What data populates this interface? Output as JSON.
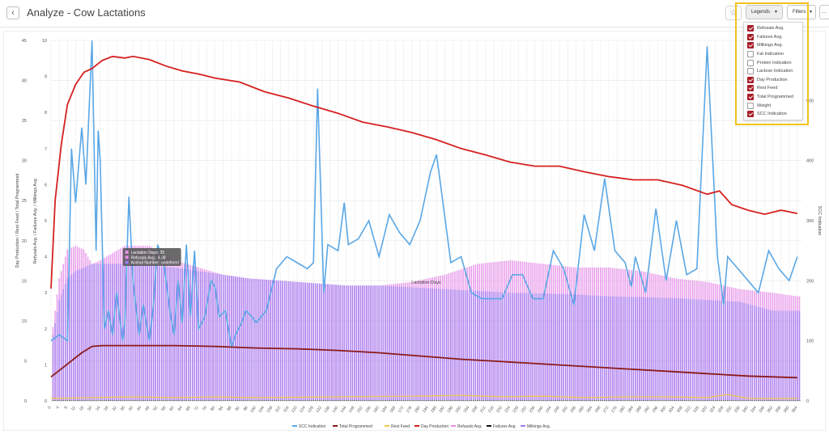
{
  "header": {
    "back_icon": "chevron-left-icon",
    "title": "Analyze - Cow Lactations",
    "star_icon": "star-icon",
    "legends_label": "Legends",
    "filters_label": "Filters",
    "more_label": "..."
  },
  "legend_dropdown": [
    {
      "label": "Refusals Avg.",
      "checked": true
    },
    {
      "label": "Failures Avg.",
      "checked": true
    },
    {
      "label": "Milkings Avg.",
      "checked": true
    },
    {
      "label": "Fat Indication",
      "checked": false
    },
    {
      "label": "Protein Indication",
      "checked": false
    },
    {
      "label": "Lactose Indication",
      "checked": false
    },
    {
      "label": "Day Production",
      "checked": true
    },
    {
      "label": "Rest Feed",
      "checked": true
    },
    {
      "label": "Total Programmed",
      "checked": true
    },
    {
      "label": "Weight",
      "checked": false
    },
    {
      "label": "SCC Indication",
      "checked": true
    }
  ],
  "colors": {
    "scc": "#5aa7e6",
    "total_programmed": "#8b1a1a",
    "rest_feed": "#f0c94c",
    "day_production": "#d62020",
    "refusals": "#e58ee8",
    "failures": "#111111",
    "milkings": "#9b7cf0",
    "highlight": "#f2c21a"
  },
  "tooltip": {
    "lines": [
      "Lactation Days: 35",
      "Refusals Avg.: 4.38",
      "Animal Number: undefined"
    ]
  },
  "chart_data": {
    "type": "bar",
    "xlabel": "Lactation Days",
    "ylabel_outer": "Day Production / Rest Feed / Total Programmed",
    "ylabel_inner": "Refusals Avg. / Failures Avg. / Milkings Avg.",
    "ylabel_right": "SCC Indication",
    "x_ticks": [
      0,
      4,
      8,
      12,
      16,
      20,
      24,
      28,
      32,
      36,
      40,
      44,
      48,
      52,
      56,
      60,
      64,
      68,
      72,
      76,
      80,
      84,
      88,
      92,
      96,
      100,
      104,
      108,
      112,
      116,
      120,
      124,
      128,
      132,
      136,
      140,
      144,
      148,
      152,
      156,
      160,
      164,
      168,
      172,
      176,
      180,
      184,
      188,
      192,
      196,
      200,
      204,
      208,
      212,
      216,
      220,
      224,
      228,
      232,
      236,
      240,
      244,
      248,
      252,
      256,
      260,
      264,
      268,
      272,
      276,
      280,
      284,
      288,
      292,
      296,
      300,
      304,
      308,
      312,
      316,
      320,
      324,
      328,
      332,
      336,
      340,
      344,
      348,
      352,
      356,
      360,
      364
    ],
    "y_outer_ticks": [
      0,
      5,
      10,
      15,
      20,
      25,
      30,
      35,
      40,
      45
    ],
    "y_inner_ticks": [
      0,
      1,
      2,
      3,
      4,
      5,
      6,
      7,
      8,
      9,
      10
    ],
    "y_right_ticks": [
      0,
      100,
      200,
      300,
      400,
      500
    ],
    "x_range": [
      0,
      366
    ],
    "y_outer_range": [
      0,
      45
    ],
    "y_inner_range": [
      0,
      10
    ],
    "y_right_range": [
      0,
      600
    ],
    "legend_position": "bottom",
    "legend": [
      "SCC Indication",
      "Total Programmed",
      "Rest Feed",
      "Day Production",
      "Refusals Avg.",
      "Failures Avg.",
      "Milkings Avg."
    ],
    "series": [
      {
        "name": "Day Production",
        "axis": "outer",
        "x": [
          0,
          2,
          5,
          8,
          12,
          16,
          20,
          25,
          30,
          36,
          40,
          48,
          56,
          64,
          72,
          80,
          92,
          104,
          116,
          128,
          140,
          152,
          164,
          176,
          188,
          200,
          212,
          224,
          236,
          248,
          260,
          272,
          284,
          296,
          308,
          320,
          326,
          332,
          340,
          348,
          356,
          364
        ],
        "values": [
          14,
          25,
          32,
          37,
          39.5,
          41,
          41.5,
          42.5,
          43,
          42.8,
          43,
          42.6,
          41.8,
          41.2,
          40.8,
          40.3,
          39.8,
          38.6,
          37.8,
          36.8,
          35.9,
          34.8,
          34.2,
          33.5,
          32.6,
          31.5,
          30.7,
          29.8,
          29.3,
          29.3,
          28.6,
          28,
          27.6,
          27.6,
          26.9,
          25.8,
          26.2,
          24.5,
          23.8,
          23.3,
          23.8,
          23.4
        ]
      },
      {
        "name": "Total Programmed",
        "axis": "outer",
        "x": [
          0,
          5,
          10,
          15,
          20,
          25,
          30,
          40,
          60,
          80,
          100,
          120,
          140,
          160,
          180,
          200,
          220,
          240,
          260,
          280,
          300,
          320,
          340,
          364
        ],
        "values": [
          3,
          4,
          5,
          6,
          6.8,
          6.9,
          6.9,
          6.9,
          6.9,
          6.8,
          6.6,
          6.5,
          6.3,
          6.0,
          5.6,
          5.2,
          4.9,
          4.6,
          4.3,
          4.0,
          3.7,
          3.4,
          3.1,
          2.9
        ]
      },
      {
        "name": "Rest Feed",
        "axis": "outer",
        "x": [
          0,
          20,
          40,
          60,
          80,
          100,
          140,
          180,
          200,
          220,
          240,
          260,
          280,
          300,
          320,
          330,
          340,
          364
        ],
        "values": [
          0.3,
          0.4,
          0.5,
          0.4,
          0.5,
          0.4,
          0.5,
          0.6,
          0.7,
          0.5,
          0.6,
          0.4,
          0.5,
          0.5,
          0.4,
          0.8,
          0.3,
          0.3
        ]
      },
      {
        "name": "Milkings Avg.",
        "axis": "inner",
        "x": [
          0,
          4,
          8,
          12,
          16,
          20,
          24,
          36,
          48,
          60,
          72,
          84,
          96,
          108,
          120,
          132,
          144,
          160,
          176,
          192,
          208,
          224,
          240,
          256,
          272,
          288,
          304,
          320,
          336,
          352,
          364
        ],
        "values": [
          1.5,
          2.8,
          3.4,
          3.6,
          3.7,
          3.8,
          3.8,
          3.8,
          3.75,
          3.7,
          3.6,
          3.5,
          3.4,
          3.35,
          3.3,
          3.25,
          3.2,
          3.2,
          3.15,
          3.1,
          3.05,
          3.0,
          2.98,
          2.95,
          2.9,
          2.88,
          2.85,
          2.8,
          2.75,
          2.5,
          2.5
        ]
      },
      {
        "name": "Refusals Avg.",
        "axis": "inner",
        "x": [
          0,
          4,
          8,
          12,
          16,
          20,
          24,
          36,
          48,
          60,
          72,
          84,
          96,
          108,
          120,
          132,
          144,
          160,
          176,
          192,
          208,
          224,
          240,
          256,
          272,
          288,
          304,
          320,
          336,
          352,
          364
        ],
        "values": [
          1.6,
          3.4,
          4.2,
          4.3,
          4.2,
          3.8,
          3.9,
          4.3,
          4.3,
          3.9,
          3.7,
          3.5,
          3.4,
          3.35,
          3.3,
          3.25,
          3.2,
          3.2,
          3.3,
          3.5,
          3.8,
          3.9,
          3.8,
          3.7,
          3.7,
          3.6,
          3.4,
          3.3,
          3.1,
          3.0,
          2.9
        ]
      },
      {
        "name": "Failures Avg.",
        "axis": "inner",
        "x": [
          0,
          364
        ],
        "values": [
          0.02,
          0.02
        ]
      },
      {
        "name": "SCC Indication",
        "axis": "right",
        "x": [
          0,
          4,
          8,
          10,
          12,
          15,
          17,
          20,
          22,
          23,
          24,
          26,
          28,
          30,
          32,
          35,
          36,
          38,
          40,
          43,
          45,
          48,
          50,
          52,
          55,
          58,
          60,
          62,
          64,
          66,
          68,
          70,
          72,
          75,
          78,
          80,
          82,
          85,
          88,
          90,
          93,
          95,
          98,
          100,
          105,
          110,
          115,
          120,
          125,
          128,
          130,
          133,
          135,
          140,
          143,
          145,
          150,
          155,
          160,
          165,
          170,
          175,
          180,
          185,
          188,
          190,
          195,
          200,
          205,
          210,
          215,
          220,
          225,
          230,
          235,
          240,
          245,
          250,
          255,
          260,
          265,
          270,
          275,
          280,
          283,
          285,
          290,
          295,
          300,
          305,
          310,
          315,
          320,
          325,
          328,
          330,
          335,
          340,
          345,
          350,
          355,
          360,
          364
        ],
        "values": [
          100,
          110,
          100,
          420,
          330,
          455,
          360,
          600,
          250,
          450,
          400,
          120,
          150,
          110,
          180,
          100,
          130,
          340,
          200,
          110,
          160,
          100,
          160,
          260,
          230,
          150,
          110,
          200,
          130,
          260,
          140,
          250,
          120,
          140,
          200,
          190,
          140,
          150,
          90,
          110,
          130,
          150,
          140,
          130,
          150,
          220,
          240,
          230,
          220,
          230,
          520,
          180,
          260,
          250,
          330,
          260,
          270,
          300,
          240,
          310,
          280,
          260,
          300,
          380,
          410,
          360,
          230,
          240,
          180,
          170,
          170,
          170,
          210,
          210,
          170,
          170,
          250,
          220,
          160,
          310,
          250,
          370,
          250,
          230,
          190,
          240,
          180,
          320,
          200,
          300,
          210,
          220,
          590,
          240,
          160,
          240,
          220,
          200,
          180,
          250,
          220,
          200,
          240
        ]
      }
    ]
  }
}
